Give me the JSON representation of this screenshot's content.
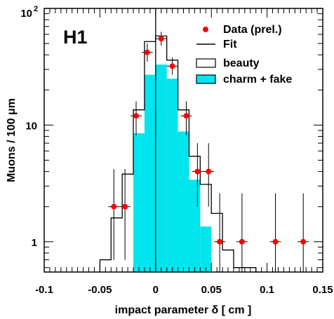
{
  "chart_data": {
    "type": "histogram",
    "experiment_label": "H1",
    "xlabel": "impact parameter δ  [ cm ]",
    "ylabel": "Muons / 100 μm",
    "xlim": [
      -0.1,
      0.15
    ],
    "ylim": [
      0.55,
      100
    ],
    "yscale": "log",
    "x_ticks": [
      {
        "value": -0.1,
        "label": "-0.1"
      },
      {
        "value": -0.05,
        "label": "-0.05"
      },
      {
        "value": 0,
        "label": "0"
      },
      {
        "value": 0.05,
        "label": "0.05"
      },
      {
        "value": 0.1,
        "label": "0.1"
      },
      {
        "value": 0.15,
        "label": "0.15"
      }
    ],
    "y_ticks": [
      {
        "value": 1,
        "label": "1"
      },
      {
        "value": 10,
        "label": "10"
      },
      {
        "value": 100,
        "label": "10",
        "sup": "2"
      }
    ],
    "legend": {
      "placement": "top-right",
      "entries": [
        {
          "key": "data",
          "label": "Data (prel.)"
        },
        {
          "key": "fit",
          "label": "Fit"
        },
        {
          "key": "beauty",
          "label": "beauty"
        },
        {
          "key": "charm",
          "label": "charm + fake"
        }
      ]
    },
    "colors": {
      "charm_fill": "#00e5ee",
      "data_marker": "#ff0000",
      "line": "#000000"
    },
    "bin_edges": [
      -0.05,
      -0.04,
      -0.03,
      -0.02,
      -0.01,
      0.0,
      0.01,
      0.02,
      0.03,
      0.04,
      0.05,
      0.06,
      0.07,
      0.08,
      0.09,
      0.1
    ],
    "series": [
      {
        "key": "fit",
        "name": "Fit",
        "values": [
          0.7,
          1.6,
          3.8,
          13.5,
          52,
          58,
          36,
          13.5,
          5.4,
          3.1,
          1.75,
          0.85,
          0.6,
          0.6,
          0.55
        ]
      },
      {
        "key": "charm",
        "name": "charm + fake",
        "values": [
          0.55,
          0.55,
          0.55,
          8.5,
          27,
          33,
          25,
          8.8,
          3.4,
          1.35,
          0.55,
          0.55,
          0.55,
          0.55,
          0.55
        ]
      },
      {
        "key": "data",
        "name": "Data (prel.)",
        "points": [
          {
            "x": -0.0375,
            "y": 2.0,
            "ylo": 0.7,
            "yhi": 4.2
          },
          {
            "x": -0.0275,
            "y": 2.0,
            "ylo": 0.7,
            "yhi": 4.2
          },
          {
            "x": -0.0175,
            "y": 12.0,
            "ylo": 8.2,
            "yhi": 16.0
          },
          {
            "x": -0.0075,
            "y": 42.0,
            "ylo": 35.0,
            "yhi": 50.0
          },
          {
            "x": 0.005,
            "y": 55.0,
            "ylo": 48.0,
            "yhi": 63.0
          },
          {
            "x": 0.015,
            "y": 32.0,
            "ylo": 27.0,
            "yhi": 38.0
          },
          {
            "x": 0.0275,
            "y": 12.0,
            "ylo": 8.2,
            "yhi": 16.0
          },
          {
            "x": 0.0375,
            "y": 4.0,
            "ylo": 2.0,
            "yhi": 7.0
          },
          {
            "x": 0.0475,
            "y": 4.0,
            "ylo": 2.0,
            "yhi": 7.0
          },
          {
            "x": 0.0575,
            "y": 1.0,
            "ylo": 0.55,
            "yhi": 2.6
          },
          {
            "x": 0.0775,
            "y": 1.0,
            "ylo": 0.55,
            "yhi": 2.6
          },
          {
            "x": 0.1075,
            "y": 1.0,
            "ylo": 0.55,
            "yhi": 2.6
          },
          {
            "x": 0.1325,
            "y": 1.0,
            "ylo": 0.55,
            "yhi": 2.6
          }
        ]
      }
    ]
  }
}
